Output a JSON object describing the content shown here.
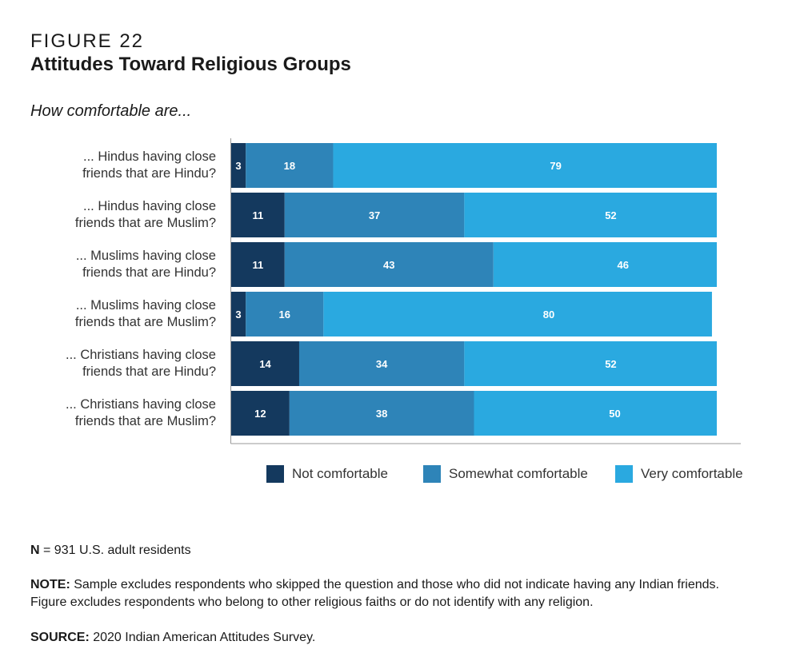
{
  "figure_label": "FIGURE 22",
  "figure_title": "Attitudes Toward Religious Groups",
  "subtitle": "How comfortable are...",
  "colors": {
    "not_comfortable": "#14395e",
    "somewhat_comfortable": "#2e84b8",
    "very_comfortable": "#2aa9e0",
    "axis": "#999999",
    "label_text": "#ffffff"
  },
  "legend": [
    {
      "label": "Not comfortable",
      "color": "#14395e"
    },
    {
      "label": "Somewhat comfortable",
      "color": "#2e84b8"
    },
    {
      "label": "Very comfortable",
      "color": "#2aa9e0"
    }
  ],
  "chart_data": {
    "type": "bar",
    "orientation": "horizontal",
    "stacked": true,
    "categories": [
      [
        "... Hindus having close",
        "friends that are Hindu?"
      ],
      [
        "... Hindus having close",
        "friends that are Muslim?"
      ],
      [
        "... Muslims having close",
        "friends that are Hindu?"
      ],
      [
        "... Muslims having close",
        "friends that are Muslim?"
      ],
      [
        "... Christians having close",
        "friends that are Hindu?"
      ],
      [
        "... Christians having close",
        "friends that are Muslim?"
      ]
    ],
    "series": [
      {
        "name": "Not comfortable",
        "values": [
          3,
          11,
          11,
          3,
          14,
          12
        ]
      },
      {
        "name": "Somewhat comfortable",
        "values": [
          18,
          37,
          43,
          16,
          34,
          38
        ]
      },
      {
        "name": "Very comfortable",
        "values": [
          79,
          52,
          46,
          80,
          52,
          50
        ]
      }
    ],
    "xlim": [
      0,
      100
    ],
    "legend_position": "bottom",
    "grid": false
  },
  "notes": {
    "n_label": "N",
    "n_text": " = 931 U.S. adult residents",
    "note_label": "NOTE:",
    "note_text": " Sample excludes respondents who skipped the question and those who did not indicate having any Indian friends.",
    "note_text_2": "Figure excludes respondents who belong to other religious faiths or do not identify with any religion.",
    "source_label": "SOURCE:",
    "source_text": " 2020 Indian American Attitudes Survey."
  }
}
